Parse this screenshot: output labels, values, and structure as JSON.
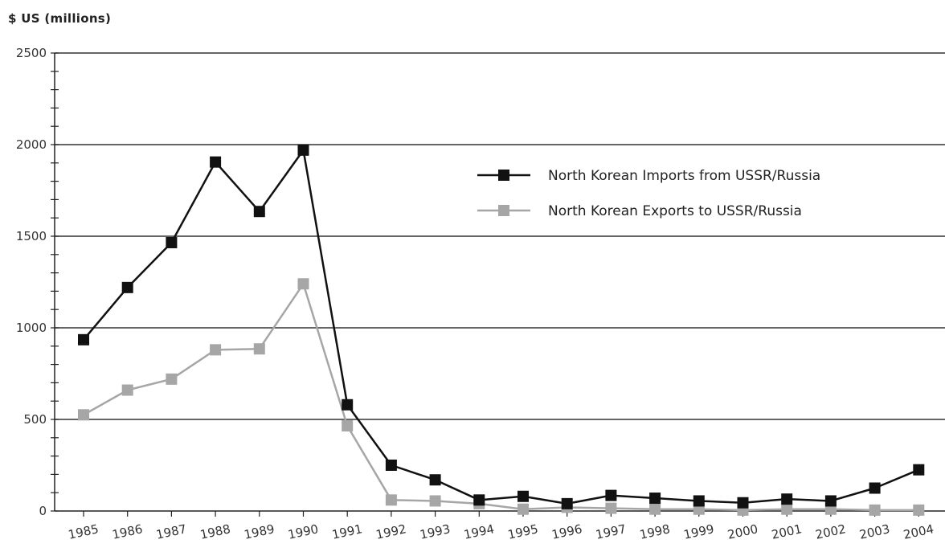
{
  "chart_data": {
    "type": "line",
    "ylabel": "$ US (millions)",
    "ylim": [
      0,
      2500
    ],
    "yticks": [
      0,
      500,
      1000,
      1500,
      2000,
      2500
    ],
    "categories": [
      "1985",
      "1986",
      "1987",
      "1988",
      "1989",
      "1990",
      "1991",
      "1992",
      "1993",
      "1994",
      "1995",
      "1996",
      "1997",
      "1998",
      "1999",
      "2000",
      "2001",
      "2002",
      "2003",
      "2004"
    ],
    "grid": true,
    "legend_position": "top-right",
    "series": [
      {
        "name": "North Korean Imports from USSR/Russia",
        "color": "#111111",
        "marker": "square",
        "values": [
          935,
          1220,
          1465,
          1905,
          1635,
          1970,
          580,
          250,
          170,
          60,
          80,
          40,
          85,
          70,
          55,
          45,
          65,
          55,
          125,
          225
        ]
      },
      {
        "name": "North Korean Exports to USSR/Russia",
        "color": "#a6a6a6",
        "marker": "square",
        "values": [
          525,
          660,
          720,
          880,
          885,
          1240,
          465,
          60,
          55,
          40,
          10,
          20,
          15,
          10,
          10,
          5,
          10,
          10,
          5,
          5
        ]
      }
    ]
  }
}
